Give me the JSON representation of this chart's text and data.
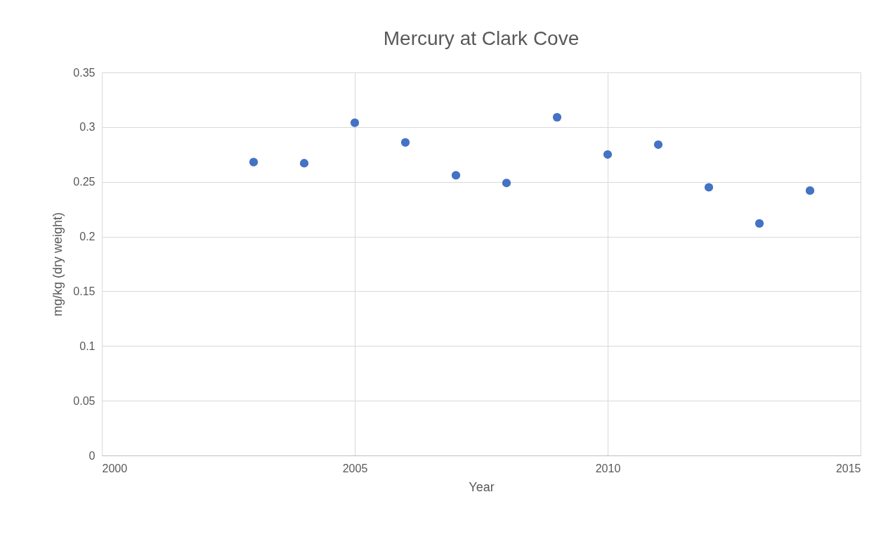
{
  "chart_data": {
    "type": "scatter",
    "title": "Mercury at Clark Cove",
    "xlabel": "Year",
    "ylabel": "mg/kg (dry weight)",
    "x": [
      2003,
      2004,
      2005,
      2006,
      2007,
      2008,
      2009,
      2010,
      2011,
      2012,
      2013,
      2014
    ],
    "series": [
      {
        "color": "#4472c4",
        "values": [
          0.268,
          0.267,
          0.304,
          0.286,
          0.256,
          0.249,
          0.309,
          0.275,
          0.284,
          0.245,
          0.212,
          0.242
        ]
      }
    ],
    "xlim": [
      2000,
      2015
    ],
    "xticks": [
      2000,
      2005,
      2010,
      2015
    ],
    "ylim": [
      0,
      0.35
    ],
    "yticks": [
      0,
      0.05,
      0.1,
      0.15,
      0.2,
      0.25,
      0.3,
      0.35
    ],
    "grid": true,
    "legend": false,
    "marker": "circle"
  }
}
